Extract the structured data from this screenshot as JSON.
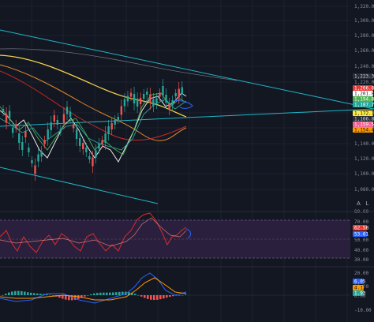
{
  "price_axis": {
    "ticks": [
      "1,320.00",
      "1,300.00",
      "1,280.00",
      "1,260.00",
      "1,240.00",
      "1,220.00",
      "1,180.00",
      "1,160.00",
      "1,140.00",
      "1,120.00",
      "1,100.00",
      "1,080.00"
    ],
    "badges": [
      {
        "text": "1,223.39",
        "color": "#2a2e39",
        "text_color": "#d1d4dc"
      },
      {
        "text": "1,206.83",
        "color": "#e53935",
        "text_color": "#ffffff"
      },
      {
        "text": "1,201.82",
        "color": "#ffffff",
        "text_color": "#131722"
      },
      {
        "text": "1,194.81",
        "color": "#4caf50",
        "text_color": "#ffffff"
      },
      {
        "text": "1,187.79",
        "color": "#26a69a",
        "text_color": "#ffffff"
      },
      {
        "text": "1,172.14",
        "color": "#ffeb3b",
        "text_color": "#131722"
      },
      {
        "text": "1,166.87",
        "color": "#2a2e39",
        "text_color": "#d1d4dc"
      },
      {
        "text": "1,159.55",
        "color": "#f06292",
        "text_color": "#ffffff"
      },
      {
        "text": "1,154.49",
        "color": "#ff9800",
        "text_color": "#131722"
      }
    ]
  },
  "rsi_axis": {
    "ticks": [
      "80.00",
      "70.00",
      "50.00",
      "40.00",
      "30.00"
    ],
    "badges": [
      {
        "text": "62.58",
        "color": "#e53935",
        "text_color": "#ffffff"
      },
      {
        "text": "53.61",
        "color": "#2962ff",
        "text_color": "#ffffff"
      }
    ]
  },
  "macd_axis": {
    "ticks": [
      "20.00",
      "10.00",
      "0.00",
      "-10.00"
    ],
    "badges": [
      {
        "text": "6.05",
        "color": "#2962ff",
        "text_color": "#ffffff"
      },
      {
        "text": "4.12",
        "color": "#ff9800",
        "text_color": "#131722"
      },
      {
        "text": "1.93",
        "color": "#26a69a",
        "text_color": "#ffffff"
      }
    ]
  },
  "pane_buttons": {
    "auto": "A",
    "log": "L"
  },
  "colors": {
    "background": "#131722",
    "up": "#26a69a",
    "down": "#ef5350",
    "ma_yellow": "#f7d54a",
    "ma_orange": "#e0892f",
    "ma_red": "#d63b3b",
    "bb_white": "#e8e8e8",
    "trendline": "#1fb5c7",
    "rsi_band": "#2a1f3d",
    "rsi_line": "#d32f2f",
    "macd_blue": "#2962ff",
    "macd_orange": "#ff9800"
  }
}
